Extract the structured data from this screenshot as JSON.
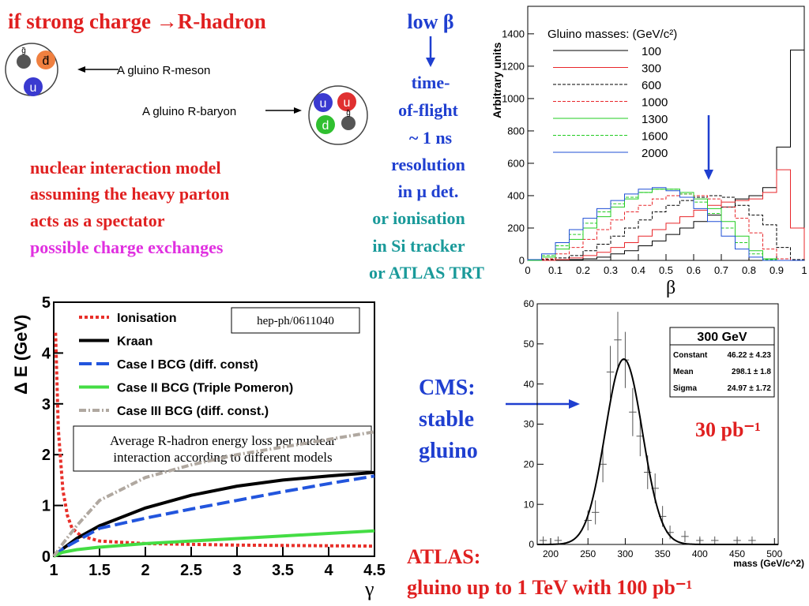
{
  "slide": {
    "title": "if strong charge →R-hadron",
    "model": [
      "nuclear interaction model",
      "assuming the heavy parton",
      "acts as a spectator"
    ],
    "exchange": "possible charge exchanges",
    "low_beta": "low β",
    "tof": [
      "time-",
      "of-flight",
      "~ 1 ns",
      "resolution",
      "in μ det."
    ],
    "ionisation": [
      "or ionisation",
      "in Si tracker",
      "or ATLAS TRT"
    ],
    "cms": [
      "CMS:",
      "stable",
      "gluino"
    ],
    "lumi": "30 pb⁻¹",
    "atlas": [
      "ATLAS:",
      "gluino up to 1 TeV with 100 pb⁻¹"
    ]
  },
  "diagram": {
    "meson": {
      "label": "A gluino R-meson",
      "quarks": [
        "g̃",
        "d̄",
        "u"
      ]
    },
    "baryon": {
      "label": "A gluino R-baryon",
      "quarks": [
        "u",
        "u",
        "d",
        "g̃"
      ]
    }
  },
  "chart_data": [
    {
      "type": "histogram",
      "ylabel": "Arbitrary units",
      "xlabel": "β",
      "legend_title": "Gluino masses: (GeV/c²)",
      "bins": [
        0,
        0.05,
        0.1,
        0.15,
        0.2,
        0.25,
        0.3,
        0.35,
        0.4,
        0.45,
        0.5,
        0.55,
        0.6,
        0.65,
        0.7,
        0.75,
        0.8,
        0.85,
        0.9,
        0.95,
        1
      ],
      "xlim": [
        0,
        1
      ],
      "xticks": [
        0,
        0.1,
        0.2,
        0.3,
        0.4,
        0.5,
        0.6,
        0.7,
        0.8,
        0.9,
        1
      ],
      "ylim": [
        0,
        1570
      ],
      "yticks": [
        0,
        200,
        400,
        600,
        800,
        1000,
        1200,
        1400
      ],
      "series": [
        {
          "name": "100",
          "color": "#000000",
          "dash": "solid",
          "values": [
            0,
            0,
            0,
            5,
            10,
            20,
            40,
            60,
            90,
            120,
            160,
            200,
            240,
            280,
            330,
            380,
            400,
            450,
            700,
            1300
          ]
        },
        {
          "name": "300",
          "color": "#e8262a",
          "dash": "solid",
          "values": [
            0,
            0,
            5,
            15,
            30,
            50,
            80,
            110,
            150,
            190,
            230,
            270,
            310,
            340,
            360,
            370,
            380,
            420,
            560,
            200
          ]
        },
        {
          "name": "600",
          "color": "#000000",
          "dash": "dashed",
          "values": [
            0,
            5,
            15,
            30,
            60,
            100,
            150,
            200,
            250,
            300,
            340,
            370,
            390,
            400,
            390,
            340,
            280,
            220,
            80,
            5
          ]
        },
        {
          "name": "1000",
          "color": "#e8262a",
          "dash": "dashed",
          "values": [
            0,
            10,
            40,
            80,
            130,
            190,
            250,
            300,
            340,
            380,
            400,
            410,
            400,
            380,
            330,
            260,
            170,
            70,
            10,
            0
          ]
        },
        {
          "name": "1300",
          "color": "#22cc22",
          "dash": "solid",
          "values": [
            0,
            20,
            70,
            130,
            200,
            270,
            330,
            380,
            420,
            440,
            440,
            420,
            380,
            320,
            240,
            150,
            60,
            10,
            0,
            0
          ]
        },
        {
          "name": "1600",
          "color": "#22cc22",
          "dash": "dashed",
          "values": [
            5,
            30,
            90,
            160,
            230,
            300,
            350,
            390,
            420,
            440,
            440,
            410,
            360,
            290,
            200,
            110,
            40,
            5,
            0,
            0
          ]
        },
        {
          "name": "2000",
          "color": "#1f4fd6",
          "dash": "solid",
          "values": [
            5,
            40,
            110,
            190,
            260,
            320,
            370,
            410,
            440,
            450,
            430,
            390,
            320,
            240,
            150,
            70,
            20,
            0,
            0,
            0
          ]
        }
      ]
    },
    {
      "type": "line",
      "ylabel": "Δ E (GeV)",
      "xlabel": "γ",
      "annotation": "hep-ph/0611040",
      "note": [
        "Average R-hadron energy loss per nuclear",
        "interaction according to different models"
      ],
      "xlim": [
        1,
        4.5
      ],
      "xticks": [
        1,
        1.5,
        2,
        2.5,
        3,
        3.5,
        4,
        4.5
      ],
      "ylim": [
        0,
        5
      ],
      "yticks": [
        0,
        1,
        2,
        3,
        4,
        5
      ],
      "series": [
        {
          "name": "Ionisation",
          "color": "#e8302a",
          "dash": "dotted",
          "x": [
            1.02,
            1.05,
            1.1,
            1.15,
            1.2,
            1.3,
            1.5,
            2,
            3,
            4.5
          ],
          "values": [
            4.4,
            2.5,
            1.3,
            0.8,
            0.55,
            0.4,
            0.3,
            0.25,
            0.22,
            0.2
          ]
        },
        {
          "name": "Kraan",
          "color": "#000000",
          "dash": "solid",
          "x": [
            1,
            1.1,
            1.25,
            1.5,
            2,
            2.5,
            3,
            3.5,
            4,
            4.5
          ],
          "values": [
            0,
            0.15,
            0.35,
            0.6,
            0.95,
            1.2,
            1.38,
            1.5,
            1.58,
            1.65
          ]
        },
        {
          "name": "Case I BCG (diff. const)",
          "color": "#2255dd",
          "dash": "dashed",
          "x": [
            1,
            1.1,
            1.25,
            1.5,
            2,
            2.5,
            3,
            3.5,
            4,
            4.5
          ],
          "values": [
            0,
            0.15,
            0.3,
            0.55,
            0.75,
            0.93,
            1.1,
            1.27,
            1.43,
            1.58
          ]
        },
        {
          "name": "Case II BCG (Triple Pomeron)",
          "color": "#44dd44",
          "dash": "solid",
          "x": [
            1,
            1.1,
            1.25,
            1.5,
            2,
            2.5,
            3,
            3.5,
            4,
            4.5
          ],
          "values": [
            0,
            0.08,
            0.13,
            0.18,
            0.25,
            0.3,
            0.35,
            0.4,
            0.45,
            0.5
          ]
        },
        {
          "name": "Case III BCG (diff. const.)",
          "color": "#b0a8a0",
          "dash": "dashdot",
          "x": [
            1,
            1.1,
            1.25,
            1.5,
            2,
            2.5,
            3,
            3.5,
            4,
            4.5
          ],
          "values": [
            0,
            0.25,
            0.6,
            1.1,
            1.55,
            1.8,
            2.0,
            2.15,
            2.3,
            2.45
          ]
        }
      ]
    },
    {
      "type": "scatter",
      "xlabel": "mass (GeV/c^2)",
      "xlim": [
        182,
        505
      ],
      "xticks": [
        200,
        250,
        300,
        350,
        400,
        450,
        500
      ],
      "ylim": [
        0,
        60
      ],
      "yticks": [
        0,
        10,
        20,
        30,
        40,
        50,
        60
      ],
      "x": [
        190,
        210,
        250,
        260,
        270,
        280,
        290,
        300,
        310,
        320,
        330,
        340,
        350,
        360,
        380,
        400,
        420,
        450,
        470
      ],
      "values": [
        1,
        1,
        6,
        8,
        20,
        43,
        51,
        46,
        33,
        27,
        18,
        14,
        7,
        3,
        2,
        1,
        1,
        1,
        1
      ],
      "errors": [
        1,
        1,
        2.5,
        3,
        4.5,
        6.5,
        7,
        7,
        6,
        5,
        4.2,
        3.7,
        2.6,
        1.7,
        1.4,
        1,
        1,
        1,
        1
      ],
      "stats": {
        "title": "300 GeV",
        "rows": [
          {
            "name": "Constant",
            "value": 46.22,
            "error": 4.23,
            "label": "46.22 ± 4.23"
          },
          {
            "name": "Mean",
            "value": 298.1,
            "error": 1.8,
            "label": "298.1 ± 1.8"
          },
          {
            "name": "Sigma",
            "value": 24.97,
            "error": 1.72,
            "label": "24.97 ± 1.72"
          }
        ]
      }
    }
  ]
}
